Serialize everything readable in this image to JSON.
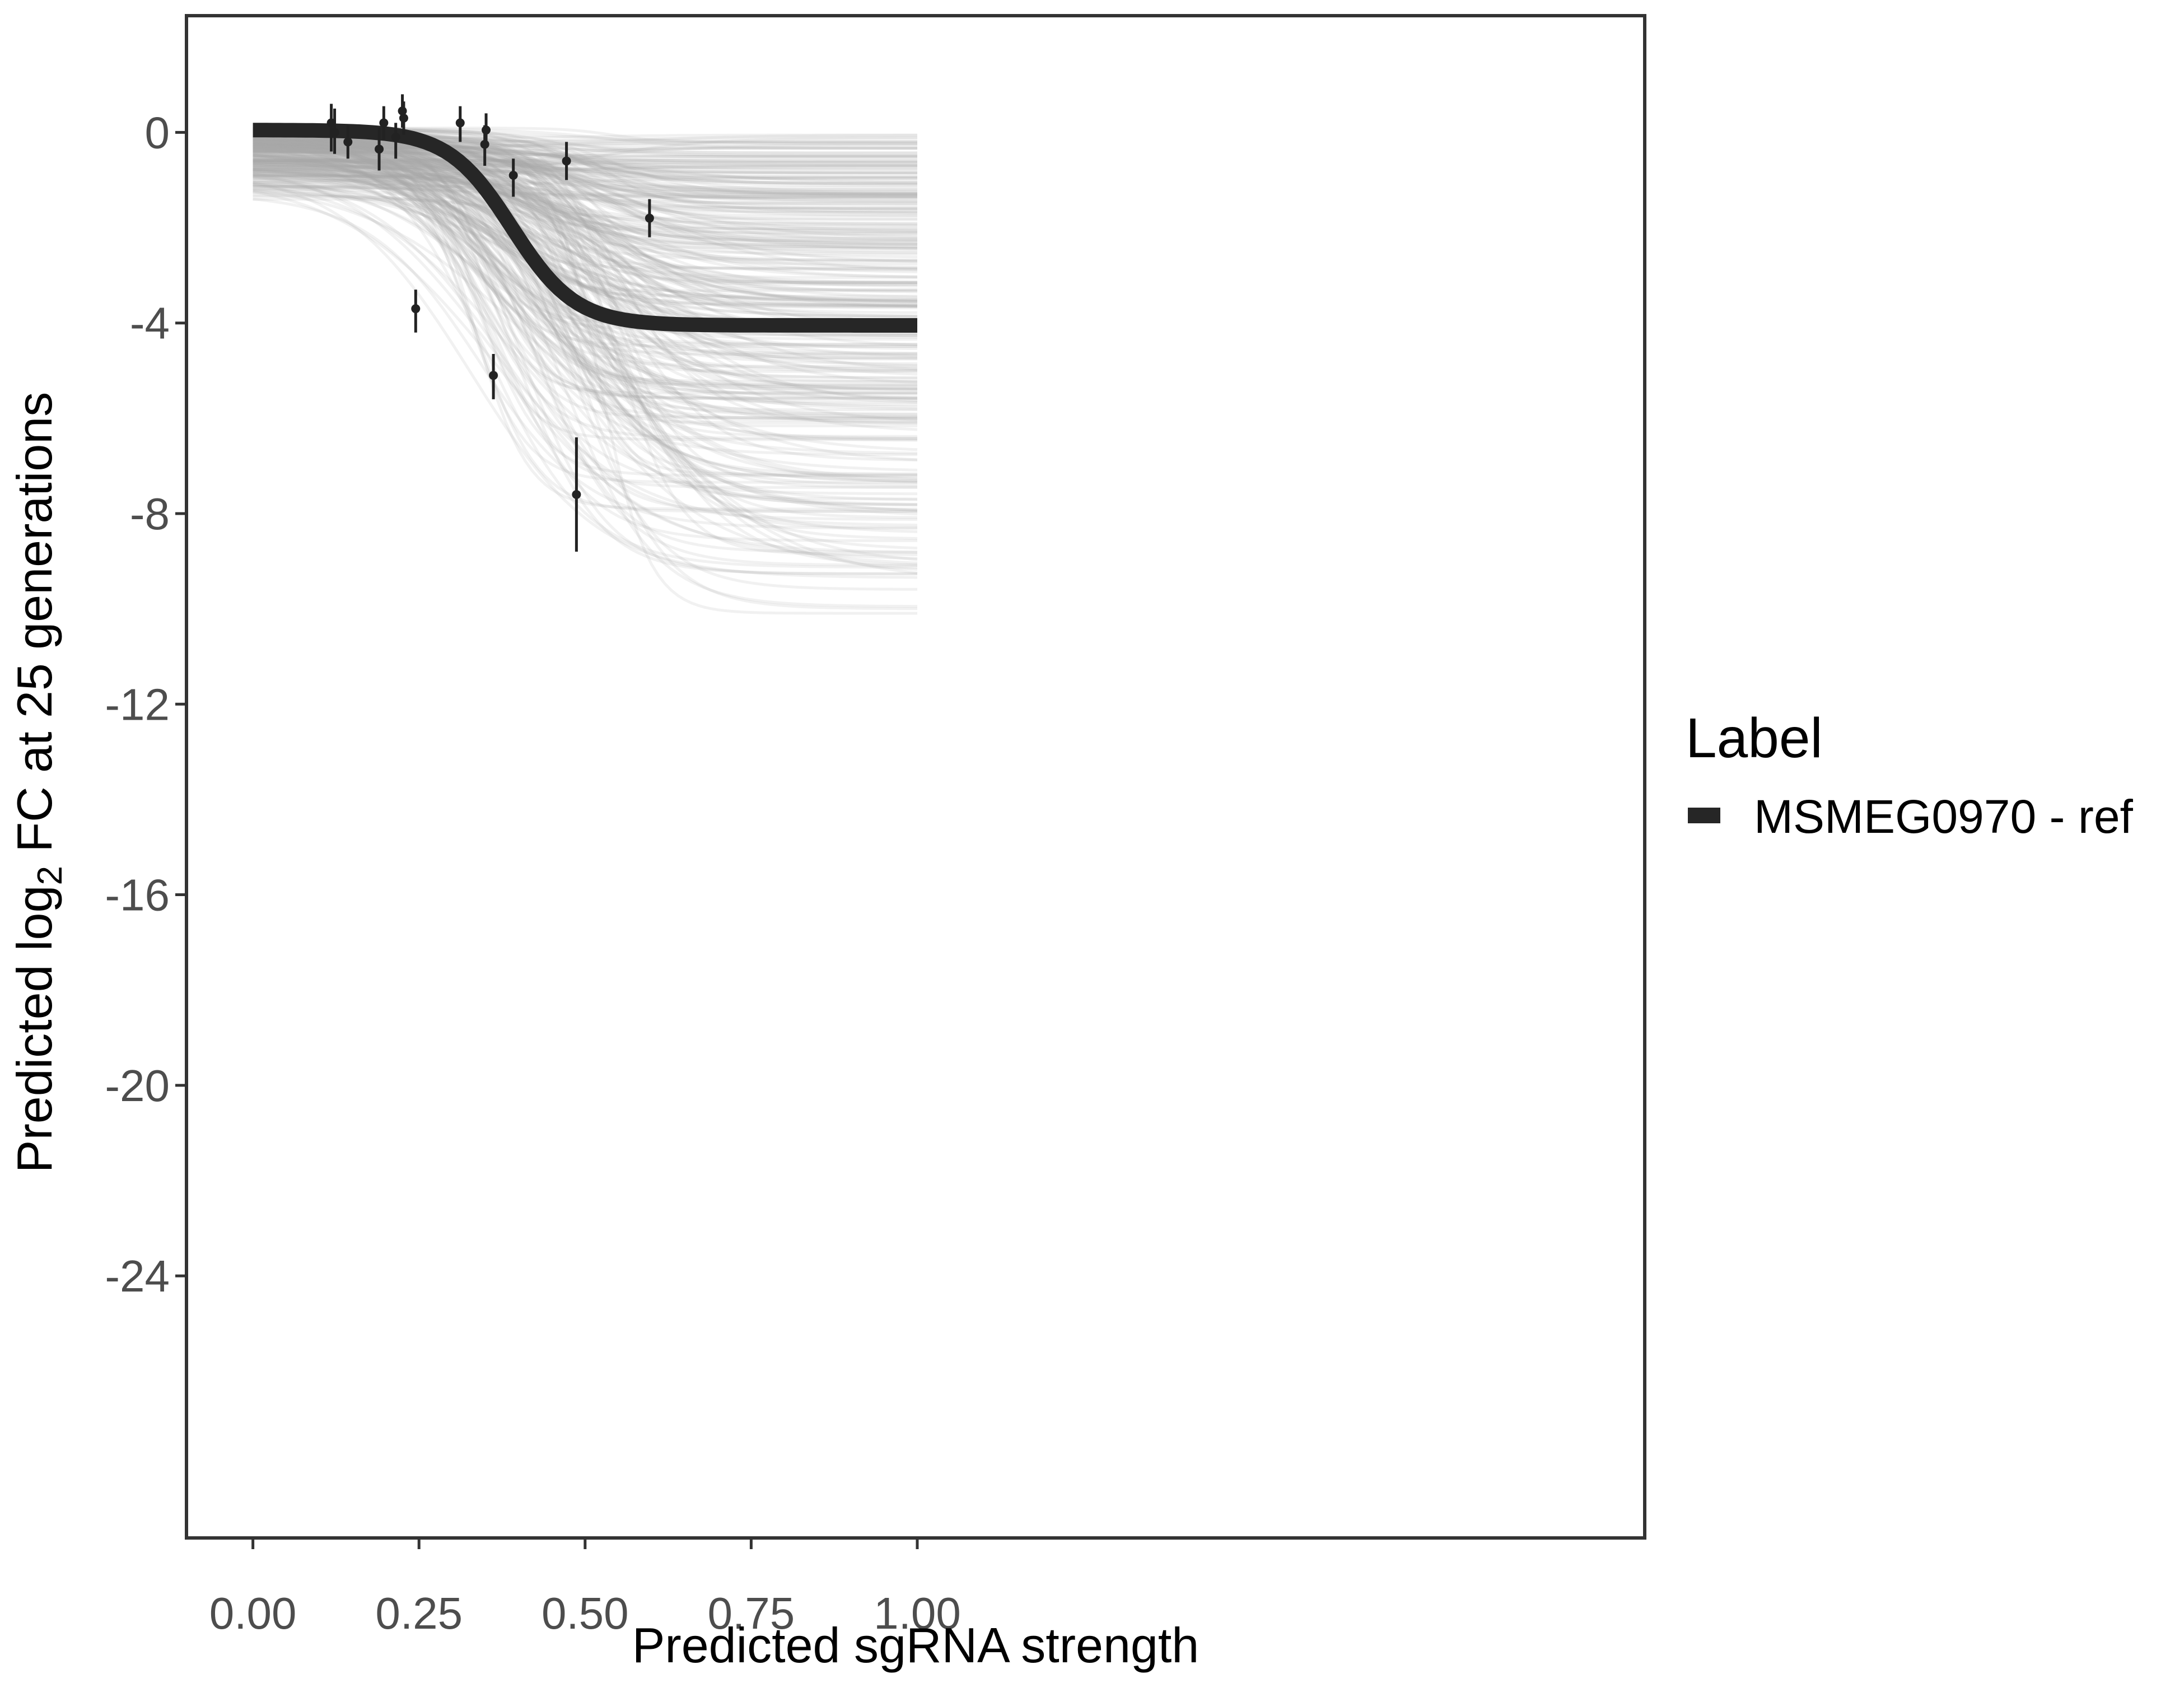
{
  "chart_data": {
    "type": "line",
    "xlabel": "Predicted sgRNA strength",
    "ylabel_parts": {
      "prefix": "Predicted  log",
      "subscript": "2",
      "suffix": " FC at 25 generations"
    },
    "xlim": [
      -0.1,
      2.095
    ],
    "ylim": [
      -29.5,
      2.45
    ],
    "x_ticks": [
      0.0,
      0.25,
      0.5,
      0.75,
      1.0
    ],
    "x_tick_labels": [
      "0.00",
      "0.25",
      "0.50",
      "0.75",
      "1.00"
    ],
    "y_ticks": [
      0,
      -4,
      -8,
      -12,
      -16,
      -20,
      -24
    ],
    "y_tick_labels": [
      "0",
      "-4",
      "-8",
      "-12",
      "-16",
      "-20",
      "-24"
    ],
    "grid": false,
    "legend": {
      "title": "Label",
      "position": "right",
      "entries": [
        {
          "label": "MSMEG0970 - ref",
          "color": "#262626"
        }
      ]
    },
    "fit_curve": {
      "name": "MSMEG0970 - ref",
      "model": "logistic",
      "top": 0.05,
      "bottom": -4.05,
      "midpoint": 0.39,
      "scale": 0.048,
      "color": "#262626"
    },
    "posterior_draws": {
      "count": 320,
      "color": "#a8a8a8",
      "top_range": [
        -1.5,
        0.1
      ],
      "bottom_range": [
        -10.7,
        0.0
      ],
      "midpoint_range": [
        0.32,
        0.56
      ],
      "scale_range": [
        0.035,
        0.12
      ]
    },
    "points": [
      {
        "x": 0.118,
        "y": 0.2,
        "err_low": -0.4,
        "err_high": 0.6
      },
      {
        "x": 0.123,
        "y": 0.0,
        "err_low": -0.45,
        "err_high": 0.5
      },
      {
        "x": 0.143,
        "y": -0.2,
        "err_low": -0.55,
        "err_high": 0.15
      },
      {
        "x": 0.19,
        "y": -0.35,
        "err_low": -0.8,
        "err_high": 0.1
      },
      {
        "x": 0.197,
        "y": 0.2,
        "err_low": -0.15,
        "err_high": 0.55
      },
      {
        "x": 0.215,
        "y": -0.1,
        "err_low": -0.55,
        "err_high": 0.2
      },
      {
        "x": 0.225,
        "y": 0.45,
        "err_low": 0.1,
        "err_high": 0.8
      },
      {
        "x": 0.227,
        "y": 0.3,
        "err_low": -0.05,
        "err_high": 0.65
      },
      {
        "x": 0.245,
        "y": -3.7,
        "err_low": -4.2,
        "err_high": -3.3
      },
      {
        "x": 0.312,
        "y": 0.2,
        "err_low": -0.2,
        "err_high": 0.55
      },
      {
        "x": 0.349,
        "y": -0.25,
        "err_low": -0.7,
        "err_high": 0.15
      },
      {
        "x": 0.351,
        "y": 0.05,
        "err_low": -0.25,
        "err_high": 0.4
      },
      {
        "x": 0.362,
        "y": -5.1,
        "err_low": -5.6,
        "err_high": -4.65
      },
      {
        "x": 0.392,
        "y": -0.9,
        "err_low": -1.35,
        "err_high": -0.55
      },
      {
        "x": 0.472,
        "y": -0.6,
        "err_low": -1.0,
        "err_high": -0.2
      },
      {
        "x": 0.487,
        "y": -7.6,
        "err_low": -8.8,
        "err_high": -6.4
      },
      {
        "x": 0.597,
        "y": -1.8,
        "err_low": -2.2,
        "err_high": -1.4
      }
    ]
  }
}
